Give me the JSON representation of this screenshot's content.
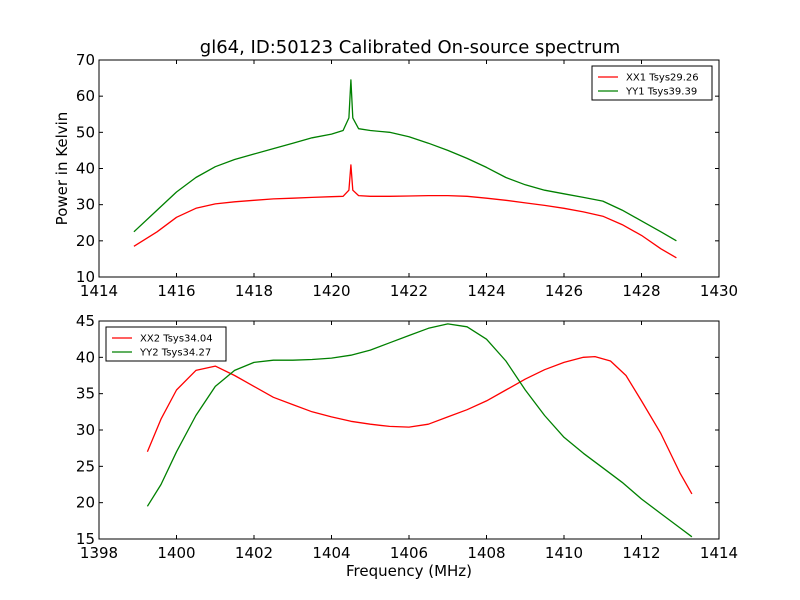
{
  "title": "gl64, ID:50123 Calibrated On-source spectrum",
  "chart_data": [
    {
      "type": "line",
      "xlim": [
        1414,
        1430
      ],
      "ylim": [
        10,
        70
      ],
      "xticks": [
        "1414",
        "1416",
        "1418",
        "1420",
        "1422",
        "1424",
        "1426",
        "1428",
        "1430"
      ],
      "yticks": [
        "10",
        "20",
        "30",
        "40",
        "50",
        "60",
        "70"
      ],
      "xlabel": "",
      "ylabel": "Power in Kelvin",
      "legend_position": "top-right",
      "grid": false,
      "series": [
        {
          "name": "XX1 Tsys29.26",
          "color": "#ff0000",
          "x": [
            1414.9,
            1415.5,
            1416.0,
            1416.5,
            1417.0,
            1417.5,
            1418.0,
            1418.5,
            1419.0,
            1419.5,
            1420.0,
            1420.3,
            1420.45,
            1420.5,
            1420.55,
            1420.7,
            1421.0,
            1421.5,
            1422.0,
            1422.5,
            1423.0,
            1423.5,
            1424.0,
            1424.5,
            1425.0,
            1425.5,
            1426.0,
            1426.5,
            1427.0,
            1427.5,
            1428.0,
            1428.5,
            1428.9
          ],
          "y": [
            18.5,
            22.5,
            26.5,
            29.0,
            30.2,
            30.8,
            31.2,
            31.6,
            31.8,
            32.0,
            32.2,
            32.3,
            34.0,
            41.0,
            34.0,
            32.5,
            32.3,
            32.3,
            32.4,
            32.5,
            32.5,
            32.3,
            31.8,
            31.2,
            30.5,
            29.8,
            29.0,
            28.0,
            26.8,
            24.5,
            21.5,
            17.8,
            15.3
          ]
        },
        {
          "name": "YY1 Tsys39.39",
          "color": "#008000",
          "x": [
            1414.9,
            1415.5,
            1416.0,
            1416.5,
            1417.0,
            1417.5,
            1418.0,
            1418.5,
            1419.0,
            1419.5,
            1420.0,
            1420.3,
            1420.45,
            1420.5,
            1420.55,
            1420.7,
            1421.0,
            1421.5,
            1422.0,
            1422.5,
            1423.0,
            1423.5,
            1424.0,
            1424.5,
            1425.0,
            1425.5,
            1426.0,
            1426.5,
            1427.0,
            1427.5,
            1428.0,
            1428.5,
            1428.9
          ],
          "y": [
            22.5,
            28.5,
            33.5,
            37.5,
            40.5,
            42.5,
            44.0,
            45.5,
            47.0,
            48.5,
            49.5,
            50.5,
            54.0,
            64.5,
            54.0,
            51.0,
            50.5,
            50.0,
            48.8,
            47.0,
            45.0,
            42.8,
            40.3,
            37.5,
            35.5,
            34.0,
            33.0,
            32.0,
            31.0,
            28.5,
            25.5,
            22.5,
            20.0
          ]
        }
      ]
    },
    {
      "type": "line",
      "xlim": [
        1398,
        1414
      ],
      "ylim": [
        15,
        45
      ],
      "xticks": [
        "1398",
        "1400",
        "1402",
        "1404",
        "1406",
        "1408",
        "1410",
        "1412",
        "1414"
      ],
      "yticks": [
        "15",
        "20",
        "25",
        "30",
        "35",
        "40",
        "45"
      ],
      "xlabel": "Frequency (MHz)",
      "ylabel": "",
      "legend_position": "top-left",
      "grid": false,
      "series": [
        {
          "name": "XX2 Tsys34.04",
          "color": "#ff0000",
          "x": [
            1399.25,
            1399.6,
            1400.0,
            1400.5,
            1401.0,
            1401.5,
            1402.0,
            1402.5,
            1403.0,
            1403.5,
            1404.0,
            1404.5,
            1405.0,
            1405.5,
            1406.0,
            1406.5,
            1407.0,
            1407.5,
            1408.0,
            1408.5,
            1409.0,
            1409.5,
            1410.0,
            1410.5,
            1410.8,
            1411.2,
            1411.6,
            1412.0,
            1412.5,
            1413.0,
            1413.3
          ],
          "y": [
            27.0,
            31.5,
            35.5,
            38.2,
            38.8,
            37.5,
            36.0,
            34.5,
            33.5,
            32.5,
            31.8,
            31.2,
            30.8,
            30.5,
            30.4,
            30.8,
            31.8,
            32.8,
            34.0,
            35.5,
            37.0,
            38.3,
            39.3,
            40.0,
            40.1,
            39.5,
            37.5,
            34.0,
            29.5,
            24.0,
            21.2
          ]
        },
        {
          "name": "YY2 Tsys34.27",
          "color": "#008000",
          "x": [
            1399.25,
            1399.6,
            1400.0,
            1400.5,
            1401.0,
            1401.5,
            1402.0,
            1402.5,
            1403.0,
            1403.5,
            1404.0,
            1404.5,
            1405.0,
            1405.5,
            1406.0,
            1406.5,
            1407.0,
            1407.5,
            1408.0,
            1408.5,
            1409.0,
            1409.5,
            1410.0,
            1410.5,
            1411.0,
            1411.5,
            1412.0,
            1412.5,
            1413.0,
            1413.3
          ],
          "y": [
            19.5,
            22.5,
            27.0,
            32.0,
            36.0,
            38.2,
            39.3,
            39.6,
            39.6,
            39.7,
            39.9,
            40.3,
            41.0,
            42.0,
            43.0,
            44.0,
            44.6,
            44.2,
            42.5,
            39.5,
            35.5,
            32.0,
            29.0,
            26.8,
            24.8,
            22.8,
            20.5,
            18.5,
            16.5,
            15.3
          ]
        }
      ]
    }
  ]
}
